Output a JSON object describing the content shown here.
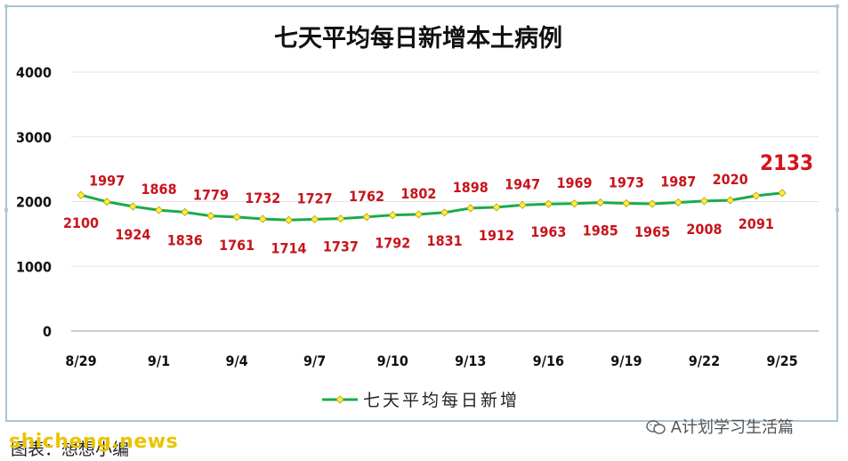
{
  "chart_data": {
    "type": "line",
    "title": "七天平均每日新增本土病例",
    "x": [
      "8/29",
      "8/30",
      "8/31",
      "9/1",
      "9/2",
      "9/3",
      "9/4",
      "9/5",
      "9/6",
      "9/7",
      "9/8",
      "9/9",
      "9/10",
      "9/11",
      "9/12",
      "9/13",
      "9/14",
      "9/15",
      "9/16",
      "9/17",
      "9/18",
      "9/19",
      "9/20",
      "9/21",
      "9/22",
      "9/23",
      "9/24",
      "9/25"
    ],
    "xticks": [
      "8/29",
      "9/1",
      "9/4",
      "9/7",
      "9/10",
      "9/13",
      "9/16",
      "9/19",
      "9/22",
      "9/25"
    ],
    "series": [
      {
        "name": "七天平均每日新增",
        "values": [
          2100,
          1997,
          1924,
          1868,
          1836,
          1779,
          1761,
          1732,
          1714,
          1727,
          1737,
          1762,
          1792,
          1802,
          1831,
          1898,
          1912,
          1947,
          1963,
          1969,
          1985,
          1973,
          1965,
          1987,
          2008,
          2020,
          2091,
          2133
        ],
        "color": "#1aab4b",
        "marker_color": "#ffef3a"
      }
    ],
    "ylim": [
      0,
      4000
    ],
    "yticks": [
      "0",
      "1000",
      "2000",
      "3000",
      "4000"
    ],
    "grid": true,
    "legend": "bottom",
    "label_color": "#c8141c"
  },
  "watermark": "A计划学习生活篇",
  "site_mark": "shicheng.news",
  "caption": "图表：想想小编"
}
